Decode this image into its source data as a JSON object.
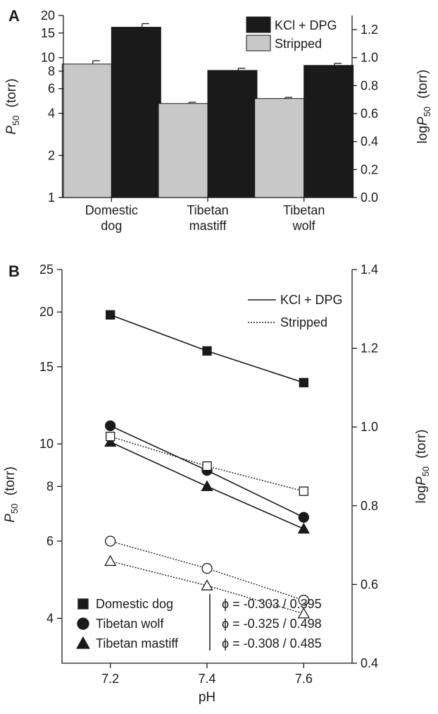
{
  "chart_data": [
    {
      "type": "bar",
      "panel_label": "A",
      "categories": [
        {
          "line1": "Domestic",
          "line2": "dog"
        },
        {
          "line1": "Tibetan",
          "line2": "mastiff"
        },
        {
          "line1": "Tibetan",
          "line2": "wolf"
        }
      ],
      "series": [
        {
          "name": "Stripped",
          "color": "#c8c8c8",
          "values": [
            9.0,
            4.7,
            5.1
          ],
          "errors": [
            0.5,
            0.1,
            0.1
          ]
        },
        {
          "name": "KCl + DPG",
          "color": "#1a1a1a",
          "values": [
            16.5,
            8.1,
            8.8
          ],
          "errors": [
            1.0,
            0.3,
            0.3
          ]
        }
      ],
      "y_scale": "log",
      "ylim": [
        1,
        20
      ],
      "yticks": [
        1,
        2,
        4,
        6,
        8,
        10,
        15,
        20
      ],
      "ylabel_main": "P",
      "ylabel_sub": "50",
      "ylabel_unit": "(torr)",
      "y2label_prefix": "log",
      "y2label_main": "P",
      "y2label_sub": "50",
      "y2label_unit": "(torr)",
      "y2ticks": [
        "0.0",
        "0.2",
        "0.4",
        "0.6",
        "0.8",
        "1.0",
        "1.2"
      ],
      "legend_placement": "top-right"
    },
    {
      "type": "line",
      "panel_label": "B",
      "x": [
        7.2,
        7.4,
        7.6
      ],
      "xticks": [
        "7.2",
        "7.4",
        "7.6"
      ],
      "xlim": [
        7.1,
        7.7
      ],
      "xlabel": "pH",
      "y_scale": "log",
      "ylim": [
        3.16,
        25
      ],
      "yticks": [
        4,
        6,
        8,
        10,
        15,
        20,
        25
      ],
      "ylabel_main": "P",
      "ylabel_sub": "50",
      "ylabel_unit": "(torr)",
      "y2label_prefix": "log",
      "y2label_main": "P",
      "y2label_sub": "50",
      "y2label_unit": "(torr)",
      "y2ticks": [
        "0.4",
        "0.6",
        "0.8",
        "1.0",
        "1.2",
        "1.4"
      ],
      "series": [
        {
          "species": "Domestic dog",
          "condition": "KCl + DPG",
          "marker": "square",
          "filled": true,
          "values": [
            19.7,
            16.3,
            13.8
          ]
        },
        {
          "species": "Tibetan wolf",
          "condition": "KCl + DPG",
          "marker": "circle",
          "filled": true,
          "values": [
            11.0,
            8.7,
            6.8
          ]
        },
        {
          "species": "Tibetan mastiff",
          "condition": "KCl + DPG",
          "marker": "triangle",
          "filled": true,
          "values": [
            10.1,
            8.0,
            6.4
          ]
        },
        {
          "species": "Domestic dog",
          "condition": "Stripped",
          "marker": "square",
          "filled": false,
          "values": [
            10.4,
            8.9,
            7.8
          ]
        },
        {
          "species": "Tibetan wolf",
          "condition": "Stripped",
          "marker": "circle",
          "filled": false,
          "values": [
            6.0,
            5.2,
            4.4
          ]
        },
        {
          "species": "Tibetan mastiff",
          "condition": "Stripped",
          "marker": "triangle",
          "filled": false,
          "values": [
            5.4,
            4.75,
            4.1
          ]
        }
      ],
      "line_legend": [
        {
          "label": "KCl + DPG",
          "style": "solid"
        },
        {
          "label": "Stripped",
          "style": "dotted"
        }
      ],
      "species_legend": [
        {
          "label": "Domestic dog",
          "marker": "square",
          "phi": "ϕ =  -0.303 / 0.395"
        },
        {
          "label": "Tibetan wolf",
          "marker": "circle",
          "phi": "ϕ =  -0.325 / 0.498"
        },
        {
          "label": "Tibetan mastiff",
          "marker": "triangle",
          "phi": "ϕ =  -0.308 / 0.485"
        }
      ]
    }
  ]
}
